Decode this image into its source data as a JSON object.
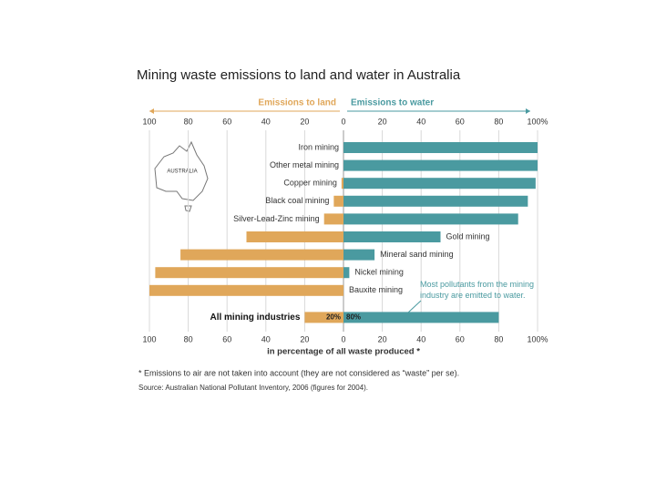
{
  "chart_data": {
    "type": "diverging-bar",
    "title": "Mining waste emissions to land and water in Australia",
    "xlabel": "in percentage of all waste produced *",
    "map_label": "AUSTRALIA",
    "annotation": [
      "Most pollutants from the mining",
      "industry are emitted to water."
    ],
    "footnote": "* Emissions to air are not taken into account (they are not considered as “waste” per se).",
    "source": "Source: Australian National Pollutant Inventory, 2006 (figures for 2004).",
    "categories": [
      "Iron mining",
      "Other metal mining",
      "Copper mining",
      "Black coal mining",
      "Silver-Lead-Zinc mining",
      "Gold mining",
      "Mineral sand mining",
      "Nickel mining",
      "Bauxite mining",
      "All mining industries"
    ],
    "series": [
      {
        "name": "Emissions to land",
        "color": "#e0a75a",
        "values": [
          0,
          0,
          1,
          5,
          10,
          50,
          84,
          97,
          100,
          20
        ],
        "value_labels": [
          null,
          null,
          null,
          null,
          null,
          null,
          null,
          null,
          null,
          "20%"
        ]
      },
      {
        "name": "Emissions to water",
        "color": "#4a9aa0",
        "values": [
          100,
          100,
          99,
          95,
          90,
          50,
          16,
          3,
          0,
          80
        ],
        "value_labels": [
          null,
          null,
          null,
          null,
          null,
          null,
          null,
          null,
          null,
          "80%"
        ]
      }
    ],
    "xlim": [
      -100,
      100
    ],
    "xticks": [
      {
        "value": -100,
        "label": "100"
      },
      {
        "value": -80,
        "label": "80"
      },
      {
        "value": -60,
        "label": "60"
      },
      {
        "value": -40,
        "label": "40"
      },
      {
        "value": -20,
        "label": "20"
      },
      0,
      20,
      40,
      60,
      80,
      {
        "value": 100,
        "label": "100%"
      }
    ],
    "grid": true
  }
}
